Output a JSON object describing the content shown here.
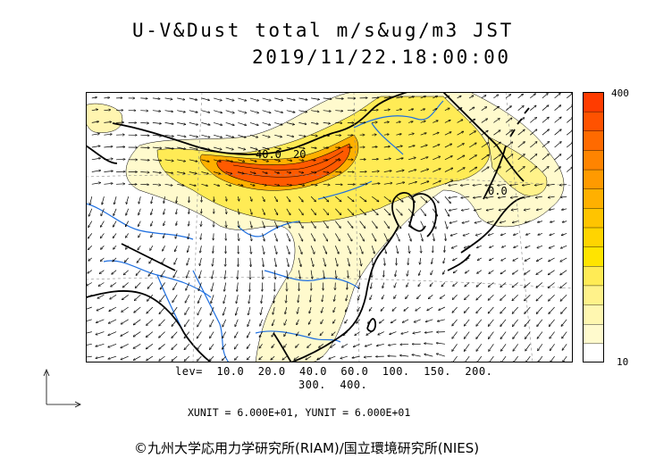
{
  "title": {
    "line1": "U-V&Dust total m/s&ug/m3 JST",
    "line2": "2019/11/22.18:00:00"
  },
  "colorbar": {
    "max_label": "400",
    "min_label": "10",
    "colors": [
      "#FFFFFF",
      "#FFFACD",
      "#FFF7B0",
      "#FFF28A",
      "#FFEB55",
      "#FFE400",
      "#FFD400",
      "#FFC400",
      "#FFB000",
      "#FF9A00",
      "#FF8400",
      "#FF6A00",
      "#FF5200",
      "#FF3C00"
    ]
  },
  "map": {
    "contour_labels": [
      "40.0",
      "20",
      "0.0"
    ],
    "wind_grid_cols": 40,
    "wind_grid_rows": 22
  },
  "levels": {
    "line1": "lev=  10.0  20.0  40.0  60.0  100.  150.  200.",
    "line2": "300.  400."
  },
  "units": "XUNIT = 6.000E+01, YUNIT = 6.000E+01",
  "copyright": "©九州大学応用力学研究所(RIAM)/国立環境研究所(NIES)"
}
